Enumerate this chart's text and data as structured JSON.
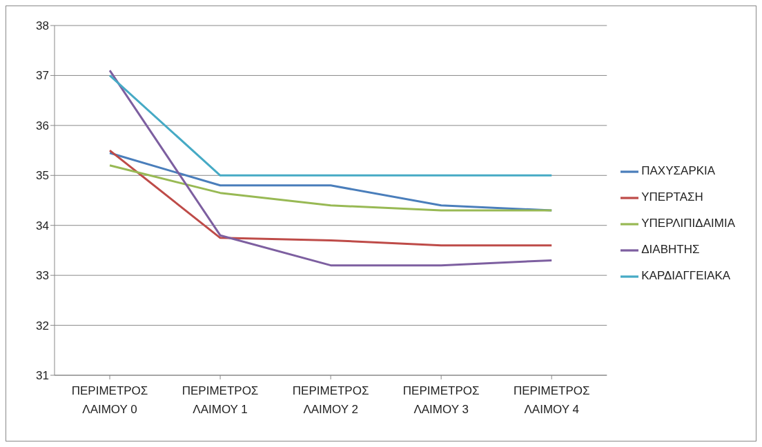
{
  "chart_data": {
    "type": "line",
    "categories": [
      "ΠΕΡΙΜΕΤΡΟΣ ΛΑΙΜΟΥ 0",
      "ΠΕΡΙΜΕΤΡΟΣ ΛΑΙΜΟΥ 1",
      "ΠΕΡΙΜΕΤΡΟΣ ΛΑΙΜΟΥ 2",
      "ΠΕΡΙΜΕΤΡΟΣ ΛΑΙΜΟΥ 3",
      "ΠΕΡΙΜΕΤΡΟΣ ΛΑΙΜΟΥ 4"
    ],
    "series": [
      {
        "name": "ΠΑΧΥΣΑΡΚΙΑ",
        "color": "#4a7ebb",
        "values": [
          35.45,
          34.8,
          34.8,
          34.4,
          34.3
        ]
      },
      {
        "name": "ΥΠΕΡΤΑΣΗ",
        "color": "#be4b48",
        "values": [
          35.5,
          33.75,
          33.7,
          33.6,
          33.6
        ]
      },
      {
        "name": "ΥΠΕΡΛΙΠΙΔΑΙΜΙΑ",
        "color": "#98b954",
        "values": [
          35.2,
          34.65,
          34.4,
          34.3,
          34.3
        ]
      },
      {
        "name": "ΔΙΑΒΗΤΗΣ",
        "color": "#7d5fa0",
        "values": [
          37.1,
          33.8,
          33.2,
          33.2,
          33.3
        ]
      },
      {
        "name": "ΚΑΡΔΙΑΓΓΕΙΑΚΑ",
        "color": "#46aac5",
        "values": [
          37.0,
          35.0,
          35.0,
          35.0,
          35.0
        ]
      }
    ],
    "ylim": [
      31,
      38
    ],
    "yticks": [
      31,
      32,
      33,
      34,
      35,
      36,
      37,
      38
    ],
    "grid": "y",
    "legend": "right",
    "marker": "none",
    "line_style": "solid"
  }
}
